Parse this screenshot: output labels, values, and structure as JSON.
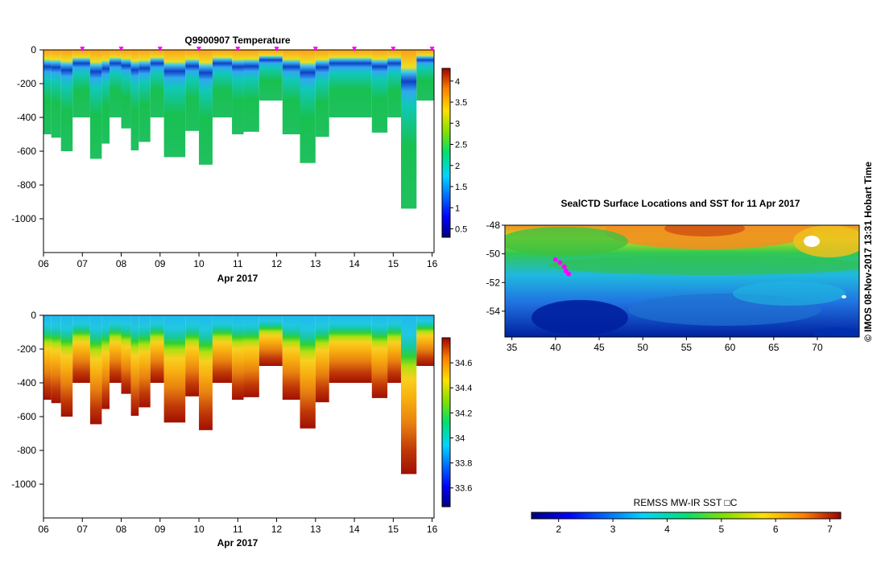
{
  "chart_data": [
    {
      "type": "heatmap",
      "title": "Q9900907  Temperature",
      "xlabel": "Apr 2017",
      "ylabel": "",
      "x_ticks": [
        "06",
        "07",
        "08",
        "09",
        "10",
        "11",
        "12",
        "13",
        "14",
        "15",
        "16"
      ],
      "xlim": [
        6.0,
        16.05
      ],
      "y_ticks": [
        0,
        -200,
        -400,
        -600,
        -800,
        -1000
      ],
      "ylim": [
        -1200,
        0
      ],
      "colorbar_ticks": [
        0.5,
        1,
        1.5,
        2,
        2.5,
        3,
        3.5,
        4
      ],
      "colorbar_range": [
        0.3,
        4.3
      ],
      "profile_markers_days": [
        7,
        8,
        9,
        10,
        11,
        12,
        13,
        14,
        15,
        16
      ],
      "profiles": [
        {
          "t0": 6.0,
          "t1": 6.2,
          "depth": 500
        },
        {
          "t0": 6.2,
          "t1": 6.45,
          "depth": 520
        },
        {
          "t0": 6.45,
          "t1": 6.75,
          "depth": 600
        },
        {
          "t0": 6.75,
          "t1": 7.2,
          "depth": 400
        },
        {
          "t0": 7.2,
          "t1": 7.5,
          "depth": 645
        },
        {
          "t0": 7.5,
          "t1": 7.7,
          "depth": 555
        },
        {
          "t0": 7.7,
          "t1": 8.0,
          "depth": 400
        },
        {
          "t0": 8.0,
          "t1": 8.25,
          "depth": 465
        },
        {
          "t0": 8.25,
          "t1": 8.45,
          "depth": 595
        },
        {
          "t0": 8.45,
          "t1": 8.75,
          "depth": 545
        },
        {
          "t0": 8.75,
          "t1": 9.1,
          "depth": 400
        },
        {
          "t0": 9.1,
          "t1": 9.65,
          "depth": 635
        },
        {
          "t0": 9.65,
          "t1": 10.0,
          "depth": 480
        },
        {
          "t0": 10.0,
          "t1": 10.35,
          "depth": 680
        },
        {
          "t0": 10.35,
          "t1": 10.85,
          "depth": 400
        },
        {
          "t0": 10.85,
          "t1": 11.15,
          "depth": 500
        },
        {
          "t0": 11.15,
          "t1": 11.55,
          "depth": 485
        },
        {
          "t0": 11.55,
          "t1": 12.15,
          "depth": 300
        },
        {
          "t0": 12.15,
          "t1": 12.6,
          "depth": 500
        },
        {
          "t0": 12.6,
          "t1": 13.0,
          "depth": 670
        },
        {
          "t0": 13.0,
          "t1": 13.35,
          "depth": 515
        },
        {
          "t0": 13.35,
          "t1": 14.45,
          "depth": 400
        },
        {
          "t0": 14.45,
          "t1": 14.85,
          "depth": 490
        },
        {
          "t0": 14.85,
          "t1": 15.2,
          "depth": 400
        },
        {
          "t0": 15.2,
          "t1": 15.6,
          "depth": 940
        },
        {
          "t0": 15.6,
          "t1": 16.05,
          "depth": 300
        }
      ]
    },
    {
      "type": "heatmap",
      "title": "",
      "xlabel": "Apr 2017",
      "ylabel": "",
      "x_ticks": [
        "06",
        "07",
        "08",
        "09",
        "10",
        "11",
        "12",
        "13",
        "14",
        "15",
        "16"
      ],
      "xlim": [
        6.0,
        16.05
      ],
      "y_ticks": [
        0,
        -200,
        -400,
        -600,
        -800,
        -1000
      ],
      "ylim": [
        -1200,
        0
      ],
      "colorbar_ticks": [
        33.6,
        33.8,
        34,
        34.2,
        34.4,
        34.6
      ],
      "colorbar_range": [
        33.45,
        34.8
      ]
    },
    {
      "type": "heatmap",
      "title": "SealCTD Surface Locations and SST for 11 Apr 2017",
      "xlabel": "",
      "ylabel": "",
      "x_ticks": [
        35,
        40,
        45,
        50,
        55,
        60,
        65,
        70
      ],
      "xlim": [
        34.2,
        74.8
      ],
      "y_ticks": [
        -48,
        -50,
        -52,
        -54
      ],
      "ylim": [
        -55.8,
        -48
      ],
      "colorbar_label": "REMSS MW-IR SST □C",
      "colorbar_ticks": [
        2,
        3,
        4,
        5,
        6,
        7
      ],
      "colorbar_range": [
        1.5,
        7.2
      ],
      "track_points": [
        [
          40.0,
          -50.4
        ],
        [
          40.5,
          -50.6
        ],
        [
          41.0,
          -50.9
        ],
        [
          41.2,
          -51.2
        ],
        [
          41.5,
          -51.4
        ]
      ]
    }
  ],
  "side_text": "©  IMOS 08-Nov-2017 13:31 Hobart Time"
}
